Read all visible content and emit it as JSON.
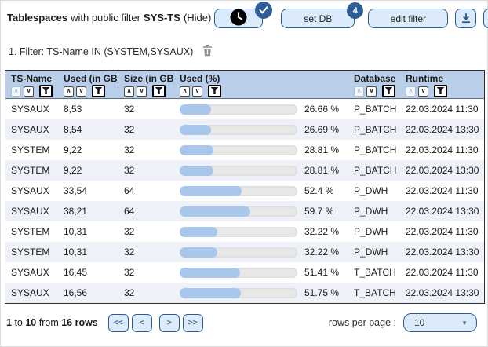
{
  "header": {
    "title": "Tablespaces",
    "subtitle": "with public filter",
    "public_filter_name": "SYS-TS",
    "hide_link": "(Hide)",
    "buttons": {
      "set_db": "set DB",
      "set_db_badge": "4",
      "edit_filter": "edit filter"
    }
  },
  "filter_bar": {
    "text": "1. Filter: TS-Name IN (SYSTEM,SYSAUX)"
  },
  "table": {
    "columns": [
      {
        "label": "TS-Name",
        "sort_asc_disabled": true
      },
      {
        "label": "Used (in GB)",
        "sort_asc_disabled": false
      },
      {
        "label": "Size (in GB)",
        "sort_asc_disabled": false
      },
      {
        "label": "Used (%)",
        "sort_asc_disabled": false
      },
      {
        "label": "Database",
        "sort_asc_disabled": true
      },
      {
        "label": "Runtime",
        "sort_asc_disabled": true
      }
    ],
    "rows": [
      {
        "ts_name": "SYSAUX",
        "used_gb": "8,53",
        "size_gb": "32",
        "used_pct": 26.66,
        "used_pct_label": "26.66 %",
        "database": "P_BATCH",
        "runtime": "22.03.2024 11:30"
      },
      {
        "ts_name": "SYSAUX",
        "used_gb": "8,54",
        "size_gb": "32",
        "used_pct": 26.69,
        "used_pct_label": "26.69 %",
        "database": "P_BATCH",
        "runtime": "22.03.2024 13:30"
      },
      {
        "ts_name": "SYSTEM",
        "used_gb": "9,22",
        "size_gb": "32",
        "used_pct": 28.81,
        "used_pct_label": "28.81 %",
        "database": "P_BATCH",
        "runtime": "22.03.2024 11:30"
      },
      {
        "ts_name": "SYSTEM",
        "used_gb": "9,22",
        "size_gb": "32",
        "used_pct": 28.81,
        "used_pct_label": "28.81 %",
        "database": "P_BATCH",
        "runtime": "22.03.2024 13:30"
      },
      {
        "ts_name": "SYSAUX",
        "used_gb": "33,54",
        "size_gb": "64",
        "used_pct": 52.4,
        "used_pct_label": "52.4 %",
        "database": "P_DWH",
        "runtime": "22.03.2024 11:30"
      },
      {
        "ts_name": "SYSAUX",
        "used_gb": "38,21",
        "size_gb": "64",
        "used_pct": 59.7,
        "used_pct_label": "59.7 %",
        "database": "P_DWH",
        "runtime": "22.03.2024 13:30"
      },
      {
        "ts_name": "SYSTEM",
        "used_gb": "10,31",
        "size_gb": "32",
        "used_pct": 32.22,
        "used_pct_label": "32.22 %",
        "database": "P_DWH",
        "runtime": "22.03.2024 11:30"
      },
      {
        "ts_name": "SYSTEM",
        "used_gb": "10,31",
        "size_gb": "32",
        "used_pct": 32.22,
        "used_pct_label": "32.22 %",
        "database": "P_DWH",
        "runtime": "22.03.2024 13:30"
      },
      {
        "ts_name": "SYSAUX",
        "used_gb": "16,45",
        "size_gb": "32",
        "used_pct": 51.41,
        "used_pct_label": "51.41 %",
        "database": "T_BATCH",
        "runtime": "22.03.2024 11:30"
      },
      {
        "ts_name": "SYSAUX",
        "used_gb": "16,56",
        "size_gb": "32",
        "used_pct": 51.75,
        "used_pct_label": "51.75 %",
        "database": "T_BATCH",
        "runtime": "22.03.2024 13:30"
      }
    ]
  },
  "footer": {
    "summary": [
      {
        "text": "1 ",
        "bold": true
      },
      {
        "text": "to",
        "bold": false
      },
      {
        "text": " 10 ",
        "bold": true
      },
      {
        "text": "from",
        "bold": false
      },
      {
        "text": " 16 rows",
        "bold": true
      }
    ],
    "pagination": [
      "<<",
      "<",
      ">",
      ">>"
    ],
    "rows_per_page_label": "rows per page :",
    "rows_per_page_value": "10"
  },
  "icons": {
    "sort_asc": "∧",
    "sort_desc": "∨",
    "dropdown_arrow": "▼"
  },
  "colors": {
    "accent_border": "#2b5c92",
    "button_bg": "#dcebfb",
    "table_header_bg": "#b9cfe9",
    "row_alt_bg": "#eef2f8",
    "bar_fill": "#a9c7eb",
    "bar_track": "#e8e8e8",
    "badge_bg": "#2e5d97"
  }
}
